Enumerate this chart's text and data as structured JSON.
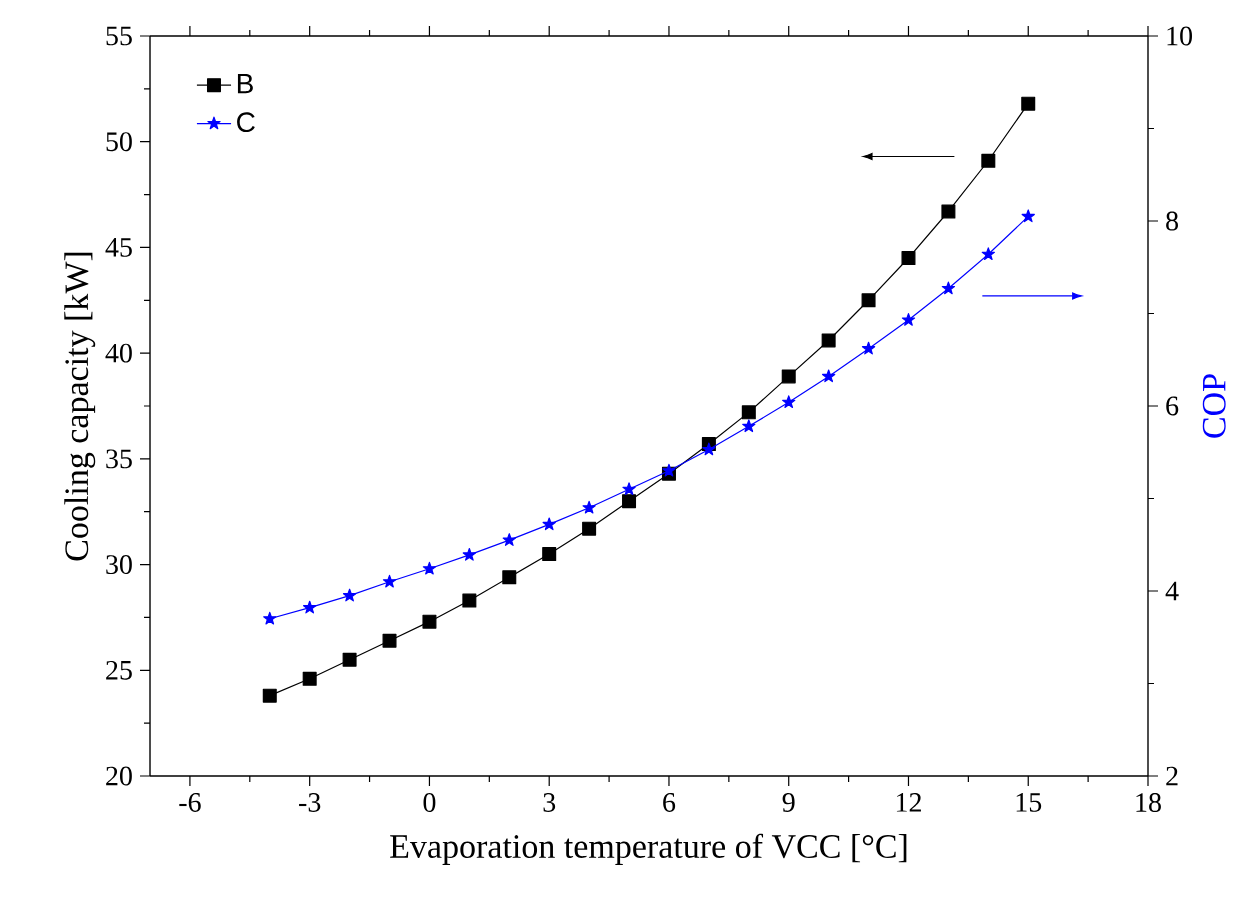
{
  "chart_data": {
    "type": "line",
    "xlabel": "Evaporation temperature of VCC [°C]",
    "ylabel": "Cooling capacity [kW]",
    "y2label": "COP",
    "x": [
      -4,
      -3,
      -2,
      -1,
      0,
      1,
      2,
      3,
      4,
      5,
      6,
      7,
      8,
      9,
      10,
      11,
      12,
      13,
      14,
      15
    ],
    "series": [
      {
        "name": "B",
        "color": "#000000",
        "marker": "square",
        "values": [
          23.8,
          24.6,
          25.5,
          26.4,
          27.3,
          28.3,
          29.4,
          30.5,
          31.7,
          33.0,
          34.3,
          35.7,
          37.2,
          38.9,
          40.6,
          42.5,
          44.5,
          46.7,
          49.1,
          51.8
        ]
      },
      {
        "name": "C",
        "color": "#0000ff",
        "marker": "star",
        "axis": "y2",
        "values": [
          3.7,
          3.82,
          3.95,
          4.1,
          4.24,
          4.39,
          4.55,
          4.72,
          4.9,
          5.1,
          5.3,
          5.53,
          5.78,
          6.04,
          6.32,
          6.62,
          6.93,
          7.27,
          7.64,
          8.05
        ]
      }
    ],
    "xlim": [
      -7,
      18
    ],
    "xticks": [
      -6,
      -3,
      0,
      3,
      6,
      9,
      12,
      15,
      18
    ],
    "ylim": [
      20,
      55
    ],
    "yticks": [
      20,
      25,
      30,
      35,
      40,
      45,
      50,
      55
    ],
    "y2lim": [
      2,
      10
    ],
    "y2ticks": [
      2,
      4,
      6,
      8,
      10
    ],
    "legend": "top left",
    "line_style": "solid",
    "grid": false
  }
}
